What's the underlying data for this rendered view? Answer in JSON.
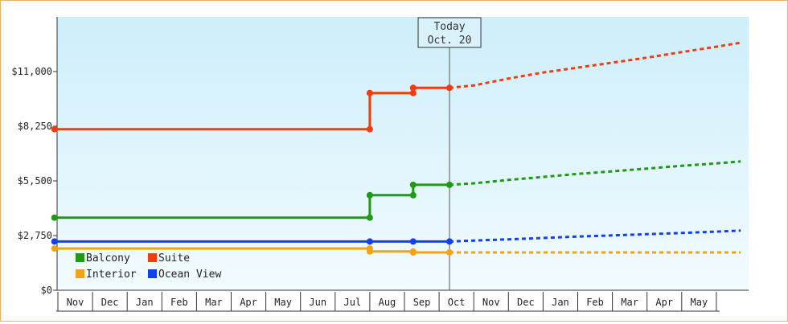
{
  "chart_data": {
    "type": "line",
    "title": "",
    "xlabel": "",
    "ylabel": "",
    "ylim": [
      0,
      13750
    ],
    "yticks": [
      {
        "value": 0,
        "label": "$0"
      },
      {
        "value": 2750,
        "label": "$2,750"
      },
      {
        "value": 5500,
        "label": "$5,500"
      },
      {
        "value": 8250,
        "label": "$8,250"
      },
      {
        "value": 11000,
        "label": "$11,000"
      }
    ],
    "months": [
      "Nov",
      "Dec",
      "Jan",
      "Feb",
      "Mar",
      "Apr",
      "May",
      "Jun",
      "Jul",
      "Aug",
      "Sep",
      "Oct",
      "Nov",
      "Dec",
      "Jan",
      "Feb",
      "Mar",
      "Apr",
      "May"
    ],
    "today": {
      "line1": "Today",
      "line2": "Oct. 20",
      "x": 11.3
    },
    "projection_end_x": 19.7,
    "grid": false,
    "legend_position": "bottom-left",
    "background": {
      "top": "#cdeefa",
      "bottom": "#f2fbff"
    },
    "series": [
      {
        "name": "Suite",
        "color": "#f03c0e",
        "points": [
          [
            -0.1,
            8100
          ],
          [
            9.0,
            8100
          ],
          [
            9.0,
            9920
          ],
          [
            10.25,
            9920
          ],
          [
            10.25,
            10180
          ],
          [
            11.3,
            10180
          ]
        ],
        "projection": [
          [
            11.3,
            10180
          ],
          [
            12.0,
            10300
          ],
          [
            13.0,
            10650
          ],
          [
            14.0,
            10950
          ],
          [
            15.0,
            11200
          ],
          [
            16.0,
            11450
          ],
          [
            17.0,
            11700
          ],
          [
            18.0,
            11980
          ],
          [
            19.0,
            12250
          ],
          [
            19.7,
            12450
          ]
        ]
      },
      {
        "name": "Balcony",
        "color": "#1e9a14",
        "points": [
          [
            -0.1,
            3650
          ],
          [
            9.0,
            3650
          ],
          [
            9.0,
            4780
          ],
          [
            10.25,
            4780
          ],
          [
            10.25,
            5300
          ],
          [
            11.3,
            5300
          ]
        ],
        "projection": [
          [
            11.3,
            5300
          ],
          [
            12.0,
            5380
          ],
          [
            13.0,
            5550
          ],
          [
            14.0,
            5700
          ],
          [
            15.0,
            5850
          ],
          [
            16.0,
            5980
          ],
          [
            17.0,
            6120
          ],
          [
            18.0,
            6260
          ],
          [
            19.0,
            6380
          ],
          [
            19.7,
            6480
          ]
        ]
      },
      {
        "name": "Ocean View",
        "color": "#1240f0",
        "points": [
          [
            -0.1,
            2450
          ],
          [
            9.0,
            2450
          ],
          [
            10.25,
            2450
          ],
          [
            11.3,
            2450
          ]
        ],
        "projection": [
          [
            11.3,
            2450
          ],
          [
            12.0,
            2500
          ],
          [
            13.0,
            2560
          ],
          [
            14.0,
            2630
          ],
          [
            15.0,
            2700
          ],
          [
            16.0,
            2760
          ],
          [
            17.0,
            2820
          ],
          [
            18.0,
            2880
          ],
          [
            19.0,
            2950
          ],
          [
            19.7,
            3000
          ]
        ]
      },
      {
        "name": "Interior",
        "color": "#f4a413",
        "points": [
          [
            -0.1,
            2100
          ],
          [
            9.0,
            2100
          ],
          [
            9.0,
            1950
          ],
          [
            10.25,
            1950
          ],
          [
            10.25,
            1900
          ],
          [
            11.3,
            1900
          ]
        ],
        "projection": [
          [
            11.3,
            1900
          ],
          [
            19.7,
            1900
          ]
        ]
      }
    ],
    "legend": [
      {
        "name": "Balcony",
        "color": "#1e9a14"
      },
      {
        "name": "Suite",
        "color": "#f03c0e"
      },
      {
        "name": "Interior",
        "color": "#f4a413"
      },
      {
        "name": "Ocean View",
        "color": "#1240f0"
      }
    ]
  }
}
